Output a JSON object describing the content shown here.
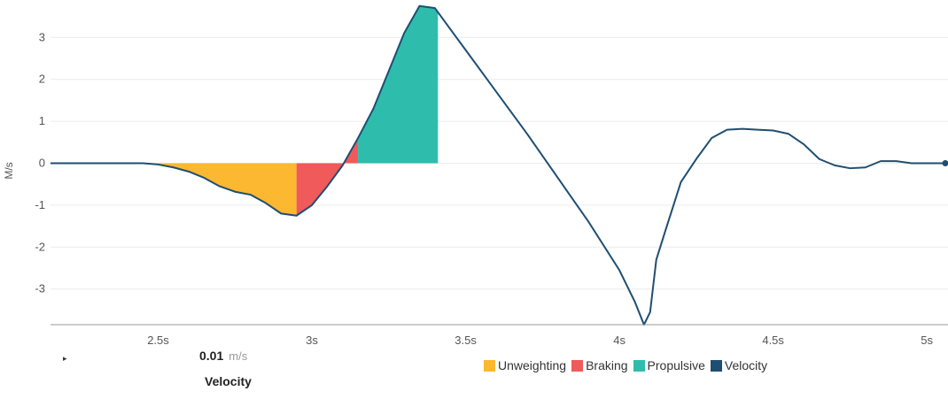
{
  "chart_data": {
    "type": "area",
    "ylabel": "M/s",
    "xlim": [
      2.15,
      5.06
    ],
    "ylim": [
      -3.85,
      3.85
    ],
    "x_ticks": [
      2.5,
      3.0,
      3.5,
      4.0,
      4.5,
      5.0
    ],
    "x_tick_labels": [
      "2.5s",
      "3s",
      "3.5s",
      "4s",
      "4.5s",
      "5s"
    ],
    "y_ticks": [
      3,
      2,
      1,
      0,
      -1,
      -2,
      -3
    ],
    "y_tick_labels": [
      "3",
      "2",
      "1",
      "0",
      "-1",
      "-2",
      "-3"
    ],
    "grid": true,
    "legend_position": "bottom-right",
    "series": [
      {
        "name": "Velocity",
        "color": "#1e4e72",
        "x": [
          2.15,
          2.3,
          2.45,
          2.5,
          2.55,
          2.6,
          2.65,
          2.7,
          2.75,
          2.8,
          2.85,
          2.9,
          2.95,
          3.0,
          3.05,
          3.1,
          3.15,
          3.2,
          3.25,
          3.3,
          3.35,
          3.4,
          3.5,
          3.6,
          3.7,
          3.8,
          3.9,
          4.0,
          4.05,
          4.08,
          4.1,
          4.12,
          4.15,
          4.2,
          4.25,
          4.3,
          4.35,
          4.4,
          4.45,
          4.5,
          4.55,
          4.6,
          4.65,
          4.7,
          4.75,
          4.8,
          4.85,
          4.9,
          4.95,
          5.0,
          5.06
        ],
        "values": [
          0,
          0,
          0,
          -0.03,
          -0.1,
          -0.2,
          -0.35,
          -0.55,
          -0.68,
          -0.75,
          -0.95,
          -1.2,
          -1.25,
          -1.0,
          -0.55,
          -0.05,
          0.6,
          1.3,
          2.2,
          3.1,
          3.75,
          3.7,
          2.7,
          1.7,
          0.7,
          -0.35,
          -1.4,
          -2.55,
          -3.3,
          -3.85,
          -3.55,
          -2.3,
          -1.6,
          -0.45,
          0.1,
          0.6,
          0.8,
          0.82,
          0.8,
          0.78,
          0.7,
          0.45,
          0.1,
          -0.05,
          -0.12,
          -0.1,
          0.05,
          0.05,
          0.0,
          0.0,
          0.0
        ]
      }
    ],
    "phases": [
      {
        "name": "Unweighting",
        "color": "#fbb830",
        "x_start": 2.5,
        "x_end": 2.95
      },
      {
        "name": "Braking",
        "color": "#f05a5a",
        "x_start": 2.95,
        "x_end": 3.15
      },
      {
        "name": "Propulsive",
        "color": "#2ebdac",
        "x_start": 3.15,
        "x_end": 3.41
      }
    ]
  },
  "legend": {
    "items": [
      {
        "label": "Unweighting",
        "color": "#fbb830"
      },
      {
        "label": "Braking",
        "color": "#f05a5a"
      },
      {
        "label": "Propulsive",
        "color": "#2ebdac"
      },
      {
        "label": "Velocity",
        "color": "#1e4e72"
      }
    ]
  },
  "readout": {
    "value": "0.01",
    "unit": "m/s",
    "label": "Velocity",
    "caret_icon": "caret-right-icon"
  }
}
